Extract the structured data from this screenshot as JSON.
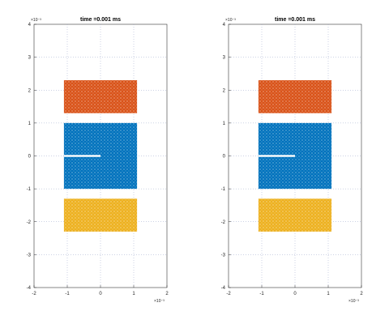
{
  "chart_data": [
    {
      "type": "scatter",
      "title": "time =0.001 ms",
      "xlim": [
        -2,
        2
      ],
      "ylim": [
        -4,
        4
      ],
      "x_ticks": [
        "-2",
        "-1",
        "0",
        "1",
        "2"
      ],
      "y_ticks": [
        "-4",
        "-3",
        "-2",
        "-1",
        "0",
        "1",
        "2",
        "3",
        "4"
      ],
      "x_exponent_label": "×10⁻³",
      "y_exponent_label": "×10⁻³",
      "grid": true,
      "series": [
        {
          "color": "#d95319",
          "x_range": [
            -1.1,
            1.1
          ],
          "y_range": [
            1.3,
            2.3
          ]
        },
        {
          "color": "#0072bd",
          "x_range": [
            -1.1,
            1.1
          ],
          "y_range": [
            -1.0,
            1.0
          ],
          "crack": {
            "x": [
              -1.1,
              0.0
            ],
            "y": 0.0
          }
        },
        {
          "color": "#edb120",
          "x_range": [
            -1.1,
            1.1
          ],
          "y_range": [
            -2.3,
            -1.3
          ]
        }
      ]
    },
    {
      "type": "scatter",
      "title": "time =0.001 ms",
      "xlim": [
        -2,
        2
      ],
      "ylim": [
        -4,
        4
      ],
      "x_ticks": [
        "-2",
        "-1",
        "0",
        "1",
        "2"
      ],
      "y_ticks": [
        "-4",
        "-3",
        "-2",
        "-1",
        "0",
        "1",
        "2",
        "3",
        "4"
      ],
      "x_exponent_label": "×10⁻³",
      "y_exponent_label": "×10⁻³",
      "grid": true,
      "series": [
        {
          "color": "#d95319",
          "x_range": [
            -1.1,
            1.1
          ],
          "y_range": [
            1.3,
            2.3
          ]
        },
        {
          "color": "#0072bd",
          "x_range": [
            -1.1,
            1.1
          ],
          "y_range": [
            -1.0,
            1.0
          ],
          "crack": {
            "x": [
              -1.1,
              0.0
            ],
            "y": 0.0
          }
        },
        {
          "color": "#edb120",
          "x_range": [
            -1.1,
            1.1
          ],
          "y_range": [
            -2.3,
            -1.3
          ]
        }
      ]
    }
  ]
}
